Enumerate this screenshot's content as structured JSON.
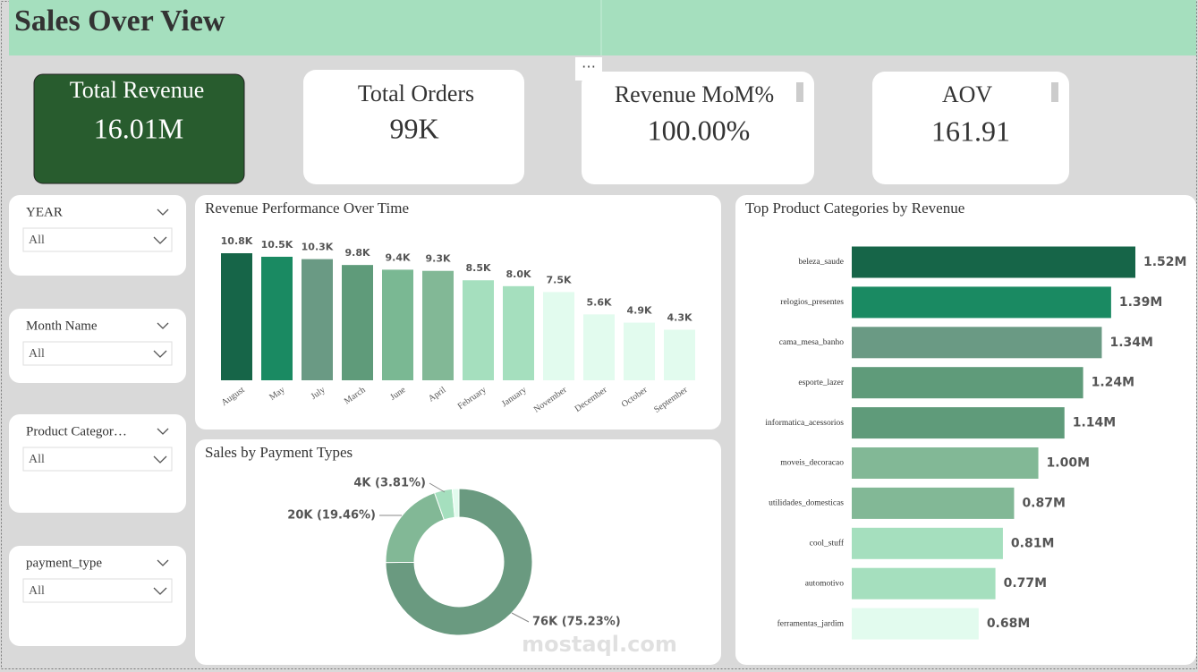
{
  "header": {
    "title": "Sales Over View"
  },
  "kpis": [
    {
      "label": "Total Revenue",
      "value": "16.01M"
    },
    {
      "label": "Total Orders",
      "value": "99K"
    },
    {
      "label": "Revenue MoM%",
      "value": "100.00%"
    },
    {
      "label": "AOV",
      "value": "161.91"
    }
  ],
  "slicers": [
    {
      "label": "YEAR",
      "value": "All"
    },
    {
      "label": "Month Name",
      "value": "All"
    },
    {
      "label": "Product Categor…",
      "value": "All"
    },
    {
      "label": "payment_type",
      "value": "All"
    }
  ],
  "watermark": "mostaql.com",
  "chart_data": [
    {
      "type": "bar",
      "title": "Revenue Performance Over Time",
      "categories": [
        "August",
        "May",
        "July",
        "March",
        "June",
        "April",
        "February",
        "January",
        "November",
        "December",
        "October",
        "September"
      ],
      "values": [
        10800,
        10500,
        10300,
        9800,
        9400,
        9300,
        8500,
        8000,
        7500,
        5600,
        4900,
        4300
      ],
      "value_labels": [
        "10.8K",
        "10.5K",
        "10.3K",
        "9.8K",
        "9.4K",
        "9.3K",
        "8.5K",
        "8.0K",
        "7.5K",
        "5.6K",
        "4.9K",
        "4.3K"
      ],
      "colors": [
        "#166548",
        "#1a8a62",
        "#6a9a84",
        "#5f9b7a",
        "#7ab893",
        "#82b896",
        "#a5dfbe",
        "#a5dfbe",
        "#e2fbee",
        "#e2fbee",
        "#e2fbee",
        "#e2fbee"
      ]
    },
    {
      "type": "donut",
      "title": "Sales by Payment Types",
      "values": [
        76000,
        20000,
        4000,
        1500
      ],
      "value_labels": [
        "76K (75.23%)",
        "20K (19.46%)",
        "4K (3.81%)",
        null
      ],
      "colors": [
        "#6a9a80",
        "#82b896",
        "#a5dfbe",
        "#e2fbee"
      ]
    },
    {
      "type": "bar",
      "orientation": "horizontal",
      "title": "Top Product Categories by Revenue",
      "categories": [
        "beleza_saude",
        "relogios_presentes",
        "cama_mesa_banho",
        "esporte_lazer",
        "informatica_acessorios",
        "moveis_decoracao",
        "utilidades_domesticas",
        "cool_stuff",
        "automotivo",
        "ferramentas_jardim"
      ],
      "values": [
        1520000,
        1390000,
        1340000,
        1240000,
        1140000,
        1000000,
        870000,
        810000,
        770000,
        680000
      ],
      "value_labels": [
        "1.52M",
        "1.39M",
        "1.34M",
        "1.24M",
        "1.14M",
        "1.00M",
        "0.87M",
        "0.81M",
        "0.77M",
        "0.68M"
      ],
      "colors": [
        "#166548",
        "#1a8a62",
        "#6a9a84",
        "#5f9b7a",
        "#5f9b7a",
        "#82b896",
        "#82b896",
        "#a5dfbe",
        "#a5dfbe",
        "#e2fbee"
      ]
    }
  ]
}
